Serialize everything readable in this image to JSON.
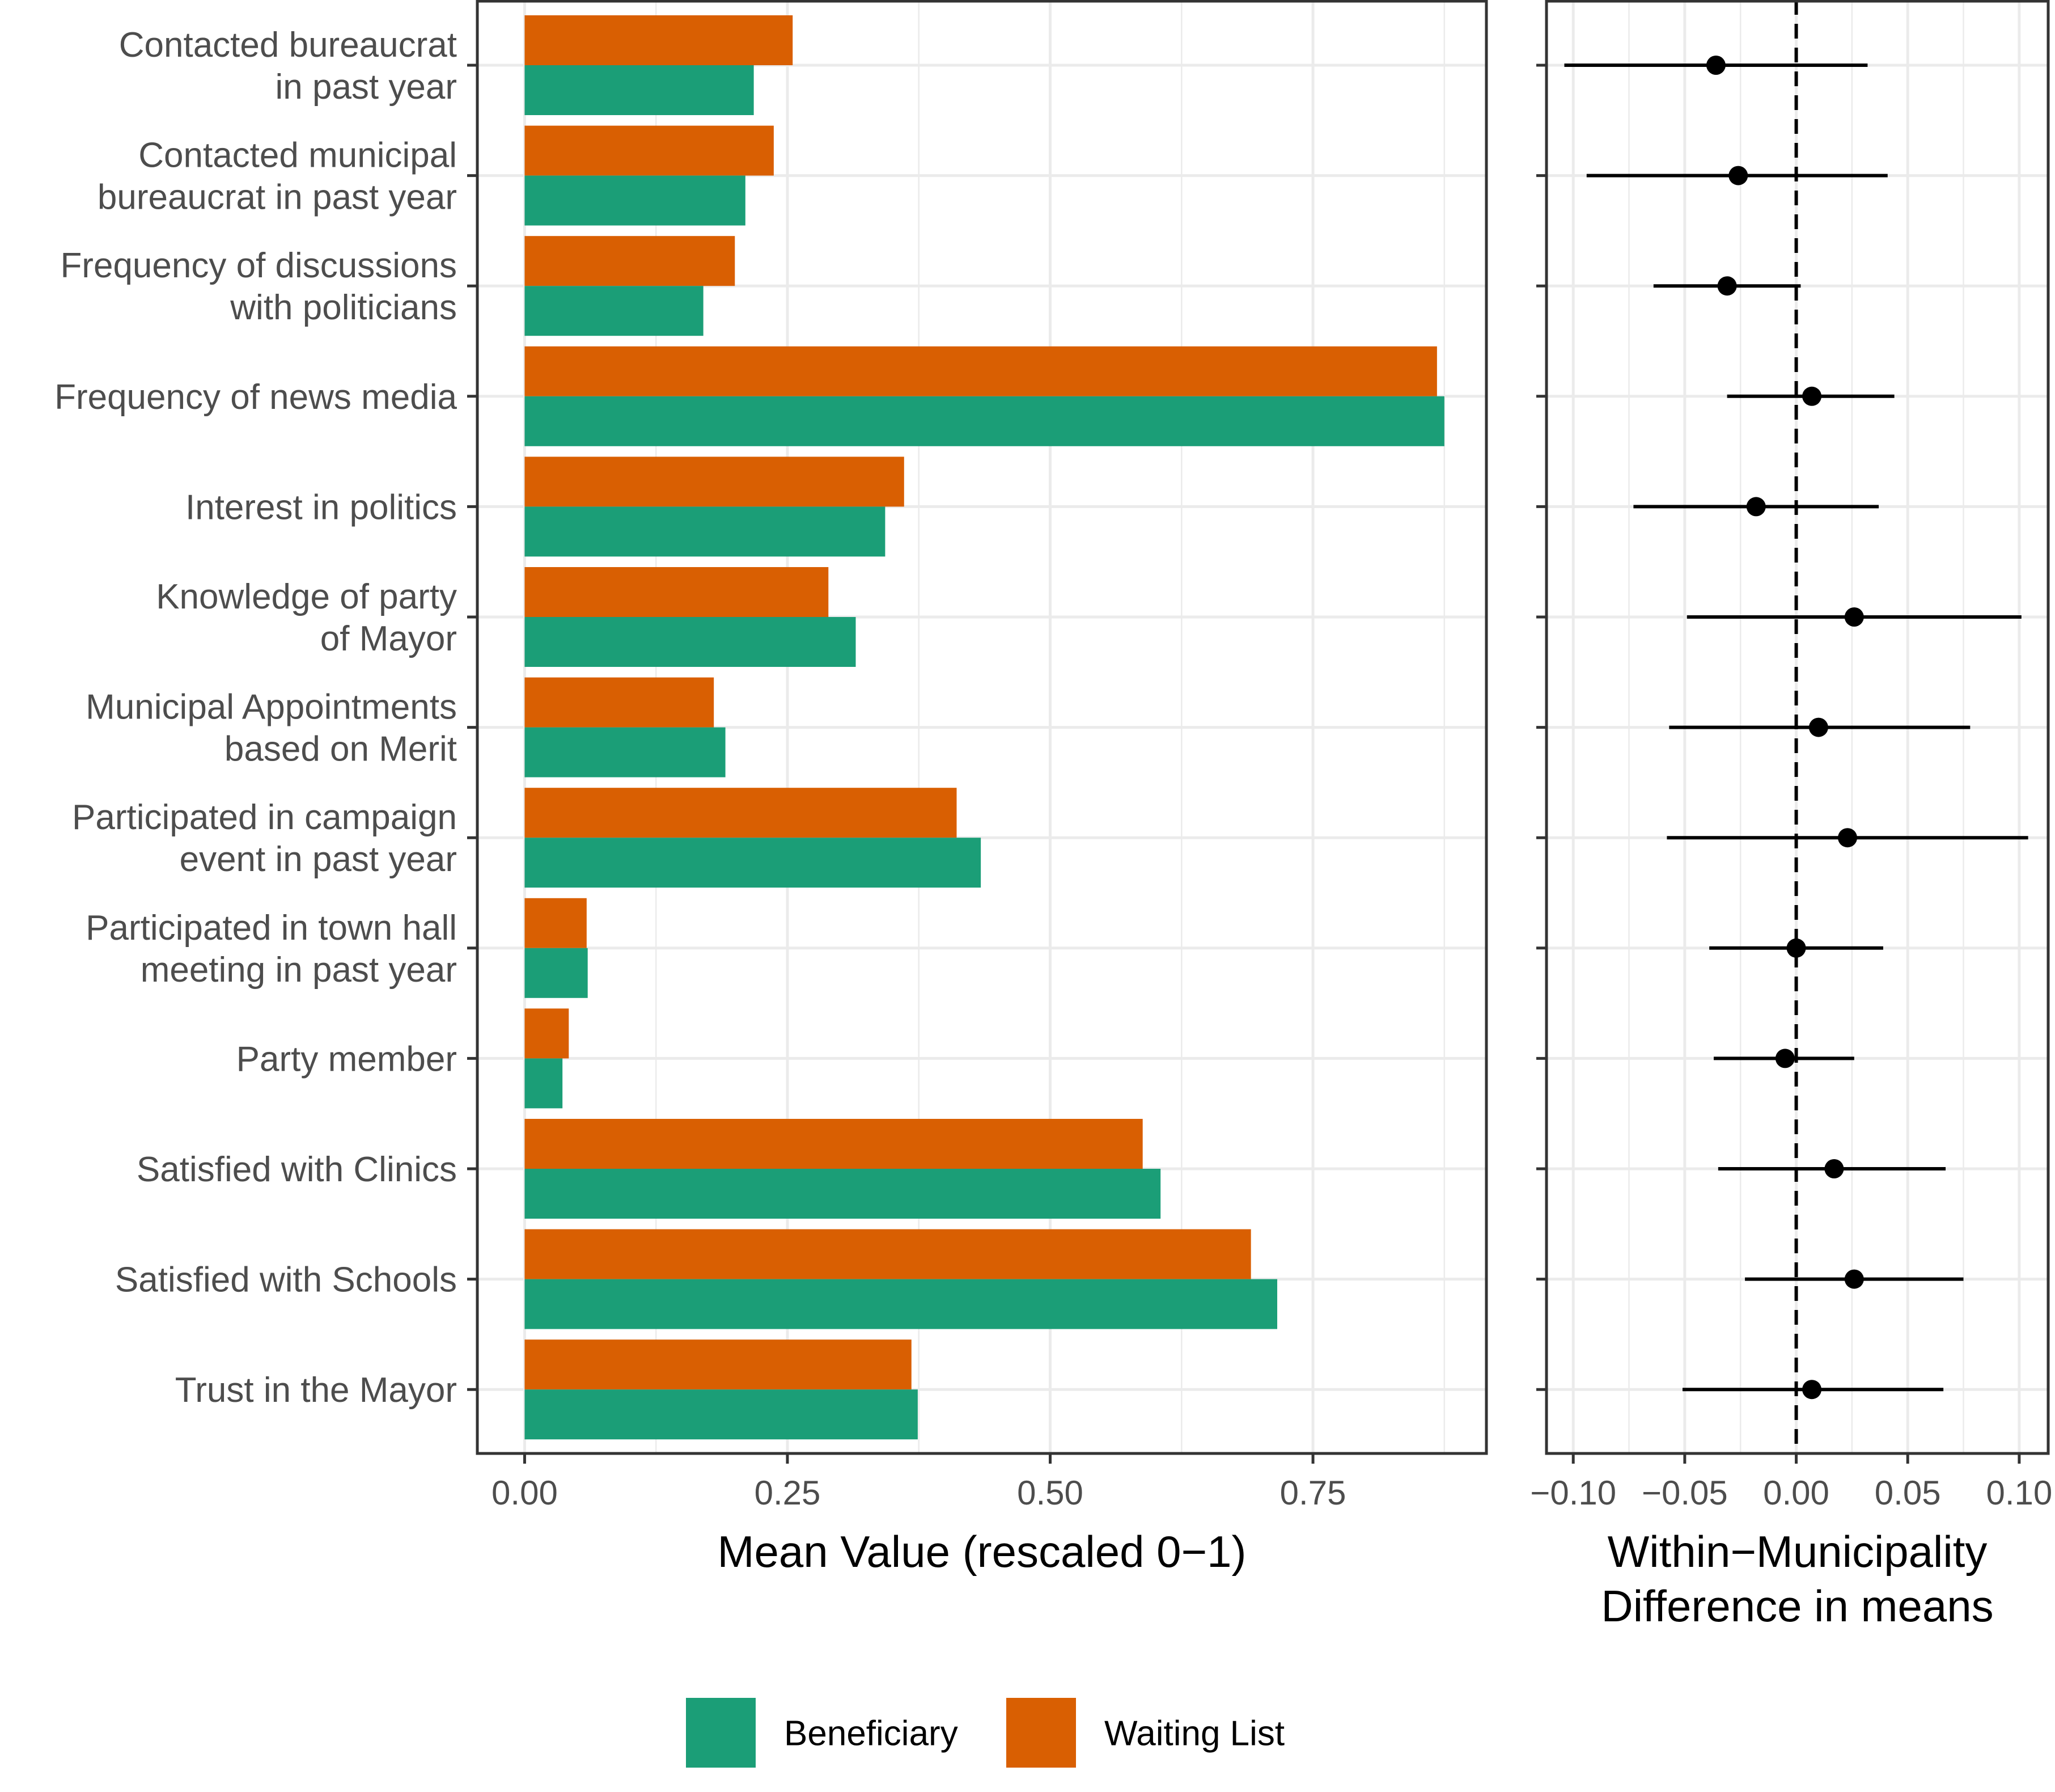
{
  "chart_data": [
    {
      "type": "bar",
      "orientation": "horizontal",
      "categories": [
        "Contacted bureaucrat\nin past year",
        "Contacted municipal\nbureaucrat in past year",
        "Frequency of discussions\nwith politicians",
        "Frequency of news media",
        "Interest in politics",
        "Knowledge of party\nof Mayor",
        "Municipal Appointments\nbased on Merit",
        "Participated in campaign\nevent in past year",
        "Participated in town hall\nmeeting in past year",
        "Party member",
        "Satisfied with Clinics",
        "Satisfied with Schools",
        "Trust in the Mayor"
      ],
      "series": [
        {
          "name": "Waiting List",
          "color": "#d95f02",
          "values": [
            0.255,
            0.237,
            0.2,
            0.868,
            0.361,
            0.289,
            0.18,
            0.411,
            0.059,
            0.042,
            0.588,
            0.691,
            0.368
          ]
        },
        {
          "name": "Beneficiary",
          "color": "#1b9e77",
          "values": [
            0.218,
            0.21,
            0.17,
            0.875,
            0.343,
            0.315,
            0.191,
            0.434,
            0.06,
            0.036,
            0.605,
            0.716,
            0.374
          ]
        }
      ],
      "xlabel": "Mean Value (rescaled 0−1)",
      "ylabel": "",
      "xlim": [
        -0.045,
        0.915
      ],
      "xticks": [
        0.0,
        0.25,
        0.5,
        0.75
      ],
      "xtick_labels": [
        "0.00",
        "0.25",
        "0.50",
        "0.75"
      ],
      "grid": true
    },
    {
      "type": "scatter",
      "subtype": "point-range",
      "categories": [
        "Contacted bureaucrat in past year",
        "Contacted municipal bureaucrat in past year",
        "Frequency of discussions with politicians",
        "Frequency of news media",
        "Interest in politics",
        "Knowledge of party of Mayor",
        "Municipal Appointments based on Merit",
        "Participated in campaign event in past year",
        "Participated in town hall meeting in past year",
        "Party member",
        "Satisfied with Clinics",
        "Satisfied with Schools",
        "Trust in the Mayor"
      ],
      "estimates": [
        -0.036,
        -0.026,
        -0.031,
        0.007,
        -0.018,
        0.026,
        0.01,
        0.023,
        0.0,
        -0.005,
        0.017,
        0.026,
        0.007
      ],
      "ci_low": [
        -0.104,
        -0.094,
        -0.064,
        -0.031,
        -0.073,
        -0.049,
        -0.057,
        -0.058,
        -0.039,
        -0.037,
        -0.035,
        -0.023,
        -0.051
      ],
      "ci_high": [
        0.032,
        0.041,
        0.002,
        0.044,
        0.037,
        0.101,
        0.078,
        0.104,
        0.039,
        0.026,
        0.067,
        0.075,
        0.066
      ],
      "xlabel": "Within−Municipality\nDifference in means",
      "xlim": [
        -0.112,
        0.113
      ],
      "xticks": [
        -0.1,
        -0.05,
        0.0,
        0.05,
        0.1
      ],
      "xtick_labels": [
        "−0.10",
        "−0.05",
        "0.00",
        "0.05",
        "0.10"
      ],
      "reference_line": 0,
      "point_color": "#000000",
      "grid": true
    }
  ],
  "legend": {
    "position": "bottom",
    "items": [
      {
        "label": "Beneficiary",
        "color": "#1b9e77"
      },
      {
        "label": "Waiting List",
        "color": "#d95f02"
      }
    ]
  }
}
